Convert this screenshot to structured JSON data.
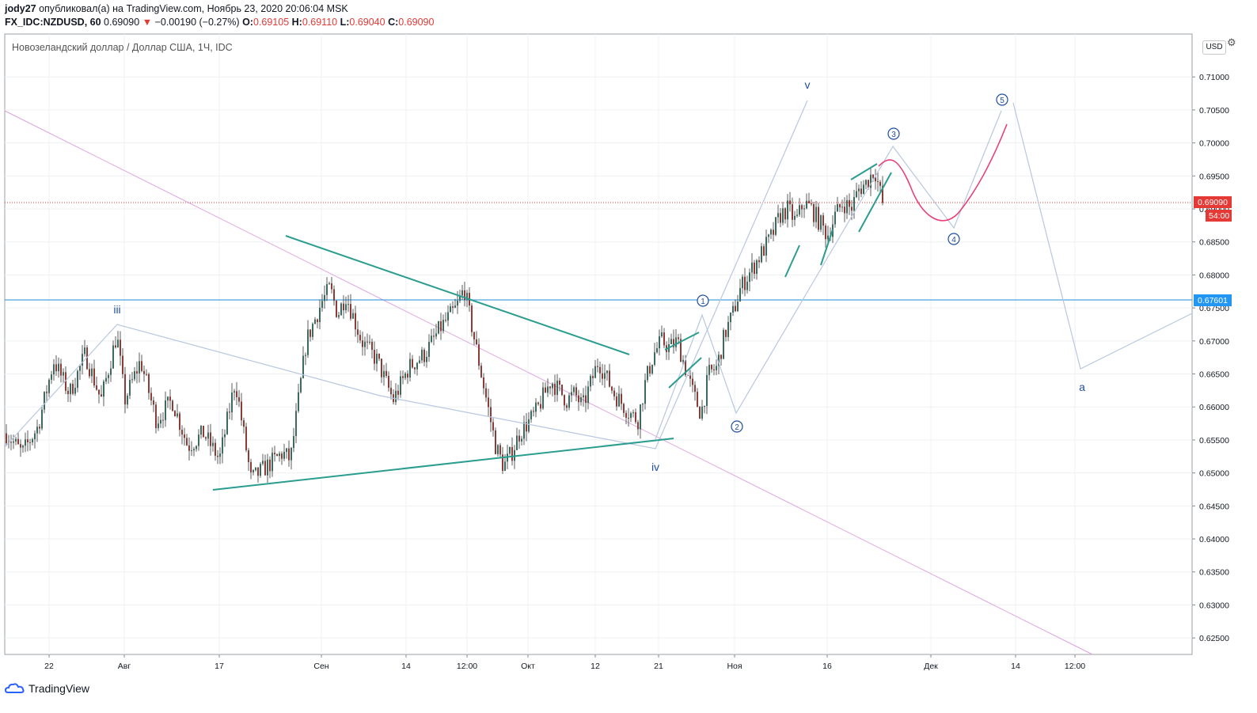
{
  "header": {
    "user": "jody27",
    "published": " опубликовал(а) на TradingView.com, Ноябрь 23, 2020 20:06:04 MSK",
    "symbol": "FX_IDC:NZDUSD, 60",
    "last": "0.69090",
    "arrow": "▼",
    "change": "−0.00190 (−0.27%)",
    "o_label": "O:",
    "o": "0.69105",
    "h_label": "H:",
    "h": "0.69110",
    "l_label": "L:",
    "l": "0.69040",
    "c_label": "C:",
    "c": "0.69090"
  },
  "legend_title": "Новозеландский доллар / Доллар США, 1Ч, IDC",
  "currency_button": "USD",
  "settings_icon": "gear-icon",
  "brand": "TradingView",
  "colors": {
    "up": "#26a69a",
    "down": "#ef5350",
    "candle": "#3b3b3b",
    "trendline": "#2a9d8f",
    "wave": "#b0c4de",
    "projection": "#e8407a",
    "diag": "#dda0dd",
    "hline": "#4aa3df",
    "price_tag": "#e53935"
  },
  "chart_data": {
    "type": "candlestick",
    "title": "Новозеландский доллар / Доллар США, 1Ч, IDC",
    "ylim": [
      0.6225,
      0.7165
    ],
    "y_ticks": [
      0.625,
      0.63,
      0.635,
      0.64,
      0.645,
      0.65,
      0.655,
      0.66,
      0.665,
      0.67,
      0.675,
      0.68,
      0.685,
      0.69,
      0.695,
      0.7,
      0.705,
      0.71
    ],
    "y_tick_labels": [
      "0.62500",
      "0.63000",
      "0.63500",
      "0.64000",
      "0.64500",
      "0.65000",
      "0.65500",
      "0.66000",
      "0.66500",
      "0.67000",
      "0.67500",
      "0.68000",
      "0.68500",
      "0.69000",
      "0.69500",
      "0.70000",
      "0.70500",
      "0.71000"
    ],
    "x_tick_labels": [
      "22",
      "Авг",
      "17",
      "Сен",
      "14",
      "12:00",
      "Окт",
      "12",
      "21",
      "Ноя",
      "16",
      "Дек",
      "14",
      "12:00"
    ],
    "last_price": 0.6909,
    "last_price_label": "0.69090",
    "countdown": "54:00",
    "hline_price": 0.67601,
    "hline_label": "0.67601",
    "price_path": [
      [
        0,
        0.656
      ],
      [
        2,
        0.653
      ],
      [
        4,
        0.657
      ],
      [
        6,
        0.667
      ],
      [
        8,
        0.662
      ],
      [
        10,
        0.668
      ],
      [
        12,
        0.661
      ],
      [
        14,
        0.671
      ],
      [
        15,
        0.661
      ],
      [
        17,
        0.667
      ],
      [
        19,
        0.658
      ],
      [
        21,
        0.661
      ],
      [
        23,
        0.654
      ],
      [
        25,
        0.656
      ],
      [
        27,
        0.652
      ],
      [
        29,
        0.664
      ],
      [
        31,
        0.649
      ],
      [
        33,
        0.651
      ],
      [
        35,
        0.653
      ],
      [
        36,
        0.652
      ],
      [
        37,
        0.661
      ],
      [
        38,
        0.67
      ],
      [
        40,
        0.676
      ],
      [
        41,
        0.678
      ],
      [
        42,
        0.674
      ],
      [
        43,
        0.677
      ],
      [
        45,
        0.67
      ],
      [
        47,
        0.667
      ],
      [
        49,
        0.661
      ],
      [
        51,
        0.666
      ],
      [
        53,
        0.668
      ],
      [
        55,
        0.672
      ],
      [
        57,
        0.675
      ],
      [
        58,
        0.678
      ],
      [
        59,
        0.672
      ],
      [
        61,
        0.66
      ],
      [
        62,
        0.654
      ],
      [
        63,
        0.651
      ],
      [
        64,
        0.653
      ],
      [
        65,
        0.656
      ],
      [
        67,
        0.659
      ],
      [
        69,
        0.664
      ],
      [
        71,
        0.661
      ],
      [
        72,
        0.662
      ],
      [
        73,
        0.66
      ],
      [
        75,
        0.667
      ],
      [
        77,
        0.662
      ],
      [
        79,
        0.659
      ],
      [
        80,
        0.658
      ],
      [
        81,
        0.664
      ],
      [
        82,
        0.668
      ],
      [
        83,
        0.67
      ],
      [
        84,
        0.669
      ],
      [
        85,
        0.67
      ],
      [
        86,
        0.666
      ],
      [
        87,
        0.662
      ],
      [
        88,
        0.659
      ],
      [
        89,
        0.665
      ],
      [
        90,
        0.666
      ],
      [
        91,
        0.671
      ],
      [
        92,
        0.674
      ],
      [
        93,
        0.678
      ],
      [
        94,
        0.68
      ],
      [
        95,
        0.682
      ],
      [
        96,
        0.684
      ],
      [
        97,
        0.686
      ],
      [
        98,
        0.689
      ],
      [
        99,
        0.69
      ],
      [
        100,
        0.688
      ],
      [
        101,
        0.691
      ],
      [
        102,
        0.69
      ],
      [
        103,
        0.688
      ],
      [
        104,
        0.686
      ],
      [
        105,
        0.689
      ],
      [
        106,
        0.691
      ],
      [
        107,
        0.69
      ],
      [
        108,
        0.693
      ],
      [
        109,
        0.694
      ],
      [
        110,
        0.696
      ],
      [
        111,
        0.6909
      ]
    ],
    "path_x_range": [
      0,
      111
    ],
    "annotations": [
      {
        "text": "iii",
        "kind": "wave-roman"
      },
      {
        "text": "iv",
        "kind": "wave-roman"
      },
      {
        "text": "v",
        "kind": "wave-roman"
      },
      {
        "text": "a",
        "kind": "wave-roman"
      },
      {
        "text": "1",
        "kind": "wave-circle"
      },
      {
        "text": "2",
        "kind": "wave-circle"
      },
      {
        "text": "3",
        "kind": "wave-circle"
      },
      {
        "text": "4",
        "kind": "wave-circle"
      },
      {
        "text": "5",
        "kind": "wave-circle"
      }
    ],
    "grid": true
  }
}
